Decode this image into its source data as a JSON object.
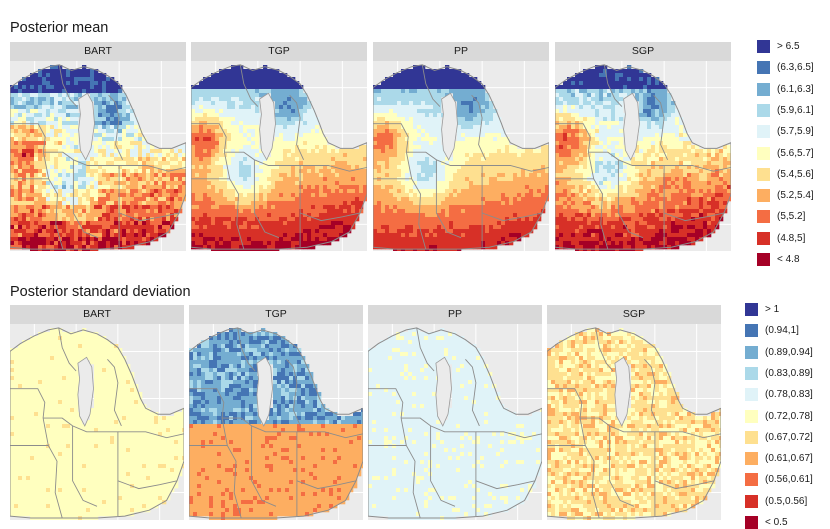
{
  "chart_data": [
    {
      "type": "heatmap",
      "title": "Posterior mean",
      "facets": [
        "BART",
        "TGP",
        "PP",
        "SGP"
      ],
      "legend": {
        "placement": "right",
        "entries": [
          "> 6.5",
          "(6.3,6.5]",
          "(6.1,6.3]",
          "(5.9,6.1]",
          "(5.7,5.9]",
          "(5.6,5.7]",
          "(5.4,5.6]",
          "(5.2,5.4]",
          "(5,5.2]",
          "(4.8,5]",
          "< 4.8"
        ],
        "colors": [
          "#313695",
          "#4575b4",
          "#74add1",
          "#abd9e9",
          "#e0f3f8",
          "#ffffbf",
          "#fee090",
          "#fdae61",
          "#f46d43",
          "#d73027",
          "#a50026"
        ]
      },
      "grid": true
    },
    {
      "type": "heatmap",
      "title": "Posterior standard deviation",
      "facets": [
        "BART",
        "TGP",
        "PP",
        "SGP"
      ],
      "legend": {
        "placement": "right",
        "entries": [
          "> 1",
          "(0.94,1]",
          "(0.89,0.94]",
          "(0.83,0.89]",
          "(0.78,0.83]",
          "(0.72,0.78]",
          "(0.67,0.72]",
          "(0.61,0.67]",
          "(0.56,0.61]",
          "(0.5,0.56]",
          "< 0.5"
        ],
        "colors": [
          "#313695",
          "#4575b4",
          "#74add1",
          "#abd9e9",
          "#e0f3f8",
          "#ffffbf",
          "#fee090",
          "#fdae61",
          "#f46d43",
          "#d73027",
          "#a50026"
        ]
      },
      "grid": true
    }
  ]
}
